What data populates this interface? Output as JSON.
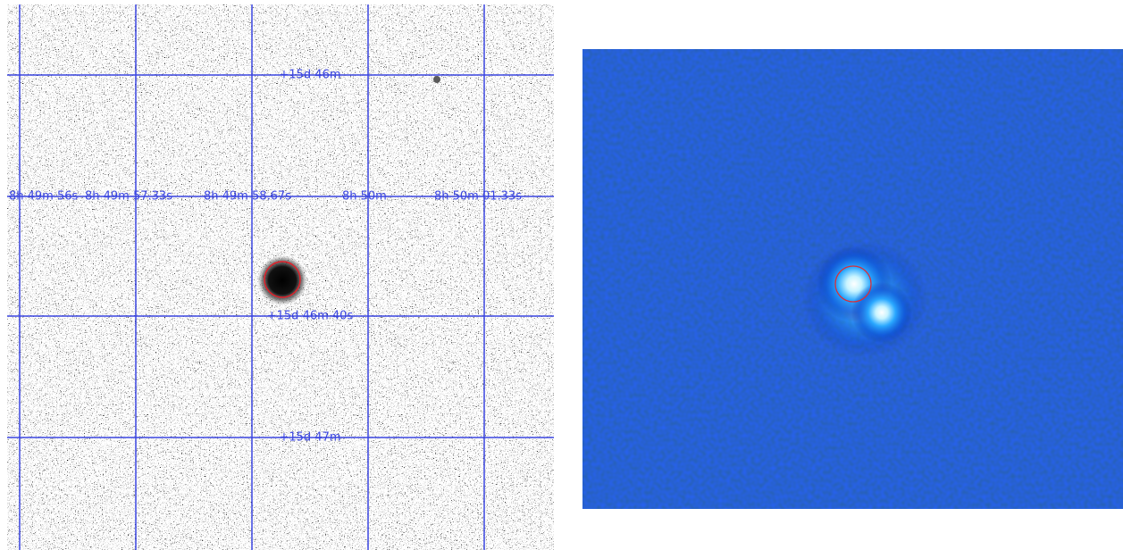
{
  "left_panel": {
    "ra_labels": [
      "8h 49m 56s",
      "8h 49m 57.33s",
      "8h 49m 58.67s",
      "8h 50m",
      "8h 50m 01.33s"
    ],
    "dec_labels": [
      "+15d 46m",
      "+15d 46m 40s",
      "+15d 47m"
    ]
  }
}
